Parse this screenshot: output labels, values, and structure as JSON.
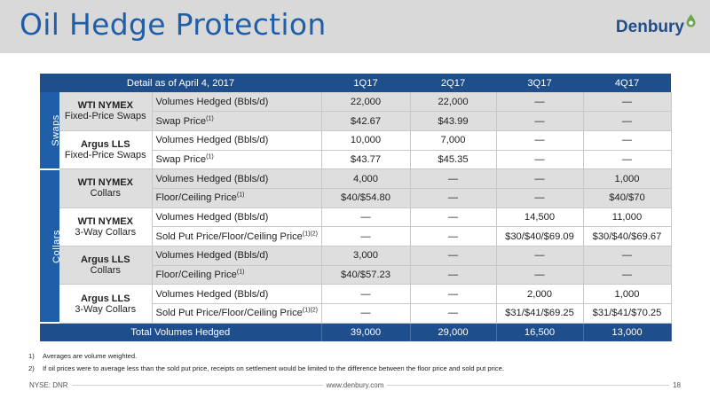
{
  "slide": {
    "title": "Oil Hedge Protection",
    "logo_text": "Denbury",
    "colors": {
      "primary": "#1f4e8c",
      "title": "#1f5fa8",
      "header_band": "#d9d9d9",
      "shade_row": "#dedede",
      "logo_drop": "#6aa84f"
    }
  },
  "table": {
    "header": [
      "Detail as of April 4, 2017",
      "1Q17",
      "2Q17",
      "3Q17",
      "4Q17"
    ],
    "groups": [
      {
        "label": "Swaps",
        "instruments": [
          {
            "name_line1": "WTI NYMEX",
            "name_line2": "Fixed-Price Swaps",
            "rows": [
              {
                "desc": "Volumes Hedged (Bbls/d)",
                "sup": "",
                "values": [
                  "22,000",
                  "22,000",
                  "—",
                  "—"
                ]
              },
              {
                "desc": "Swap Price",
                "sup": "(1)",
                "values": [
                  "$42.67",
                  "$43.99",
                  "—",
                  "—"
                ]
              }
            ]
          },
          {
            "name_line1": "Argus LLS",
            "name_line2": "Fixed-Price Swaps",
            "rows": [
              {
                "desc": "Volumes Hedged (Bbls/d)",
                "sup": "",
                "values": [
                  "10,000",
                  "7,000",
                  "—",
                  "—"
                ]
              },
              {
                "desc": "Swap Price",
                "sup": "(1)",
                "values": [
                  "$43.77",
                  "$45.35",
                  "—",
                  "—"
                ]
              }
            ]
          }
        ]
      },
      {
        "label": "Collars",
        "instruments": [
          {
            "name_line1": "WTI NYMEX",
            "name_line2": "Collars",
            "rows": [
              {
                "desc": "Volumes Hedged (Bbls/d)",
                "sup": "",
                "values": [
                  "4,000",
                  "—",
                  "—",
                  "1,000"
                ]
              },
              {
                "desc": "Floor/Ceiling Price",
                "sup": "(1)",
                "values": [
                  "$40/$54.80",
                  "—",
                  "—",
                  "$40/$70"
                ]
              }
            ]
          },
          {
            "name_line1": "WTI NYMEX",
            "name_line2": "3-Way Collars",
            "rows": [
              {
                "desc": "Volumes Hedged (Bbls/d)",
                "sup": "",
                "values": [
                  "—",
                  "—",
                  "14,500",
                  "11,000"
                ]
              },
              {
                "desc": "Sold Put Price/Floor/Ceiling Price",
                "sup": "(1)(2)",
                "values": [
                  "—",
                  "—",
                  "$30/$40/$69.09",
                  "$30/$40/$69.67"
                ]
              }
            ]
          },
          {
            "name_line1": "Argus LLS",
            "name_line2": "Collars",
            "rows": [
              {
                "desc": "Volumes Hedged (Bbls/d)",
                "sup": "",
                "values": [
                  "3,000",
                  "—",
                  "—",
                  "—"
                ]
              },
              {
                "desc": "Floor/Ceiling Price",
                "sup": "(1)",
                "values": [
                  "$40/$57.23",
                  "—",
                  "—",
                  "—"
                ]
              }
            ]
          },
          {
            "name_line1": "Argus LLS",
            "name_line2": "3-Way Collars",
            "rows": [
              {
                "desc": "Volumes Hedged (Bbls/d)",
                "sup": "",
                "values": [
                  "—",
                  "—",
                  "2,000",
                  "1,000"
                ]
              },
              {
                "desc": "Sold Put Price/Floor/Ceiling Price",
                "sup": "(1)(2)",
                "values": [
                  "—",
                  "—",
                  "$31/$41/$69.25",
                  "$31/$41/$70.25"
                ]
              }
            ]
          }
        ]
      }
    ],
    "total": {
      "label": "Total Volumes Hedged",
      "values": [
        "39,000",
        "29,000",
        "16,500",
        "13,000"
      ]
    }
  },
  "notes": [
    {
      "num": "1)",
      "text": "Averages are volume weighted."
    },
    {
      "num": "2)",
      "text": "If oil prices were to average less than the sold put price, receipts on settlement would be limited to the difference between the floor price and sold put price."
    }
  ],
  "footer": {
    "ticker": "NYSE: DNR",
    "url": "www.denbury.com",
    "page": "18"
  }
}
